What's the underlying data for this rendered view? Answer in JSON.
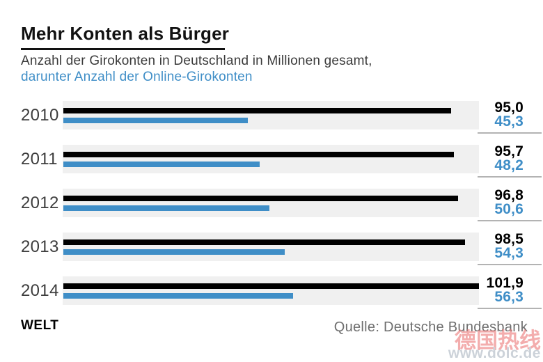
{
  "title": "Mehr Konten als Bürger",
  "subtitle_line1": "Anzahl der Girokonten in Deutschland in Millionen gesamt,",
  "subtitle_line2": "darunter Anzahl der Online-Girokonten",
  "brand": "WELT",
  "source": "Quelle: Deutsche Bundesbank",
  "watermark": {
    "cn": "德国热线",
    "url": "www.dolc.de"
  },
  "colors": {
    "total": "#000000",
    "online": "#3f8ec7",
    "track": "#f0f0f0",
    "value_rule": "#b3b3b3"
  },
  "chart_data": {
    "type": "bar",
    "orientation": "horizontal",
    "title": "Mehr Konten als Bürger",
    "subtitle": "Anzahl der Girokonten in Deutschland in Millionen gesamt, darunter Anzahl der Online-Girokonten",
    "unit": "Millionen",
    "categories": [
      "2010",
      "2011",
      "2012",
      "2013",
      "2014"
    ],
    "series": [
      {
        "name": "Girokonten gesamt",
        "color": "#000000",
        "values": [
          95.0,
          95.7,
          96.8,
          98.5,
          101.9
        ]
      },
      {
        "name": "Online-Girokonten",
        "color": "#3f8ec7",
        "values": [
          45.3,
          48.2,
          50.6,
          54.3,
          56.3
        ]
      }
    ],
    "value_labels": [
      [
        "95,0",
        "45,3"
      ],
      [
        "95,7",
        "48,2"
      ],
      [
        "96,8",
        "50,6"
      ],
      [
        "98,5",
        "54,3"
      ],
      [
        "101,9",
        "56,3"
      ]
    ],
    "xmax": 101.9,
    "grid": false,
    "legend_position": "subtitle"
  }
}
